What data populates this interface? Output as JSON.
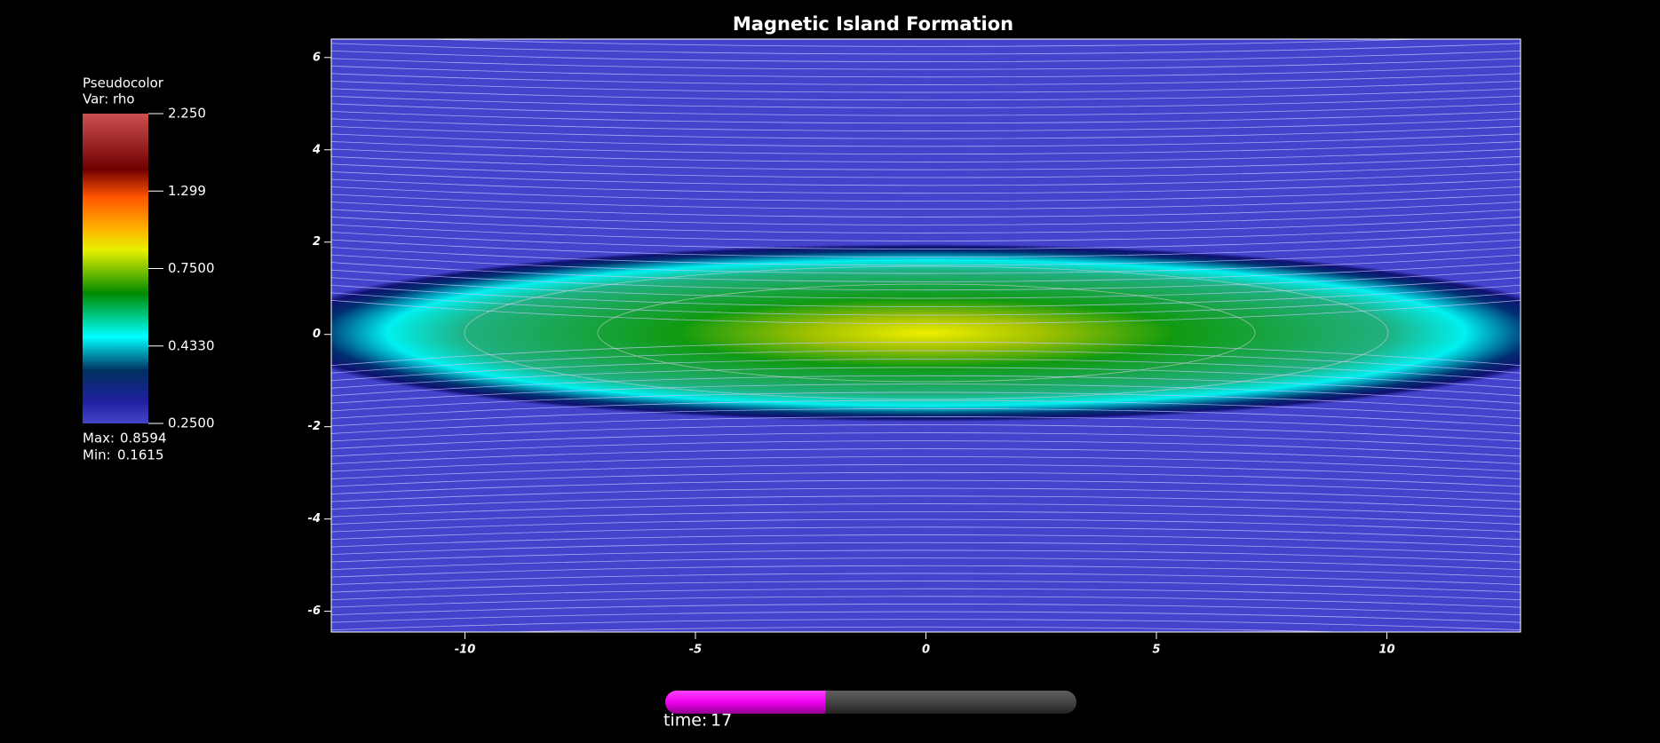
{
  "chart_data": {
    "type": "pseudocolor",
    "title": "Magnetic Island Formation",
    "xlim": [
      -12.9,
      12.9
    ],
    "ylim": [
      -6.45,
      6.4
    ],
    "xticks": [
      -10,
      -5,
      0,
      5,
      10
    ],
    "yticks": [
      -6,
      -4,
      -2,
      0,
      2,
      4,
      6
    ],
    "legend": {
      "title": "Pseudocolor",
      "var": "Var: rho",
      "log": true,
      "ticks": [
        {
          "value": 2.25,
          "label": "2.250"
        },
        {
          "value": 1.299,
          "label": "1.299"
        },
        {
          "value": 0.75,
          "label": "0.7500"
        },
        {
          "value": 0.433,
          "label": "0.4330"
        },
        {
          "value": 0.25,
          "label": "0.2500"
        }
      ],
      "max_label": "Max:",
      "max": 0.8594,
      "min_label": "Min:",
      "min": 0.1615
    },
    "time_slider": {
      "label": "time:",
      "value": 17,
      "progress": 0.39
    }
  }
}
